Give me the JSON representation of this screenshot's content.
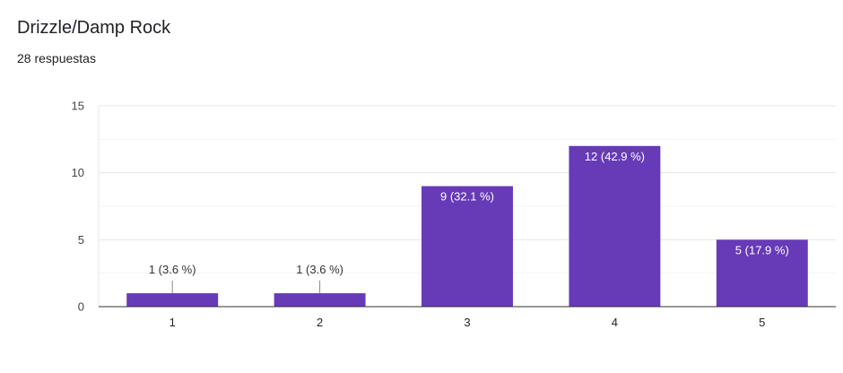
{
  "header": {
    "title": "Drizzle/Damp Rock",
    "responses": "28 respuestas"
  },
  "chart_data": {
    "type": "bar",
    "categories": [
      "1",
      "2",
      "3",
      "4",
      "5"
    ],
    "values": [
      1,
      1,
      9,
      12,
      5
    ],
    "data_labels": [
      "1 (3.6 %)",
      "1 (3.6 %)",
      "9 (32.1 %)",
      "12 (42.9 %)",
      "5 (17.9 %)"
    ],
    "title": "Drizzle/Damp Rock",
    "xlabel": "",
    "ylabel": "",
    "ylim": [
      0,
      15
    ],
    "yticks": [
      0,
      5,
      10,
      15
    ],
    "grid": true,
    "bar_color": "#673ab7"
  }
}
